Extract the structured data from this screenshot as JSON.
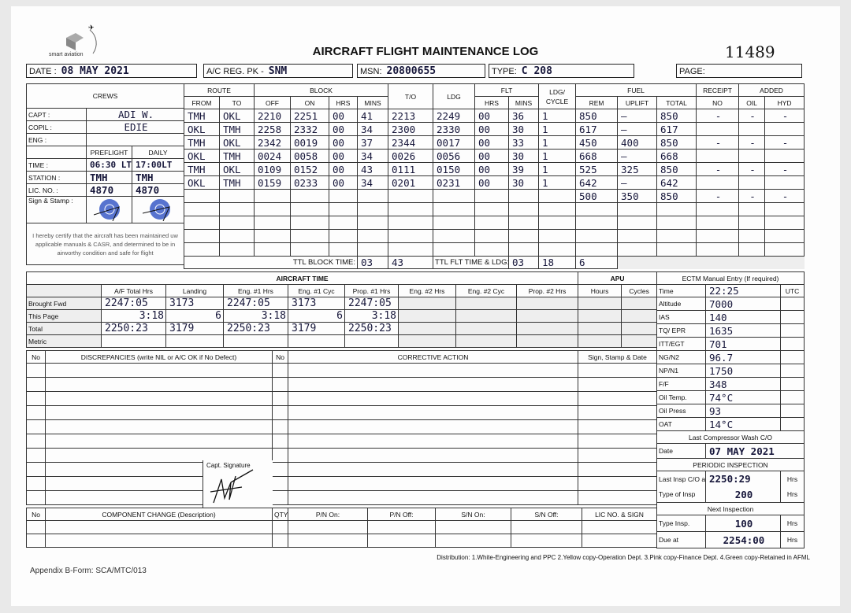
{
  "logo": {
    "text": "smart aviation"
  },
  "title": "AIRCRAFT FLIGHT MAINTENANCE LOG",
  "serial": "11489",
  "header": {
    "date_label": "DATE :",
    "date": "08 MAY 2021",
    "reg_label": "A/C REG. PK -",
    "reg": "SNM",
    "msn_label": "MSN:",
    "msn": "20800655",
    "type_label": "TYPE:",
    "type": "C 208",
    "page_label": "PAGE:",
    "page": ""
  },
  "crews": {
    "title": "CREWS",
    "capt_label": "CAPT :",
    "capt": "ADI W.",
    "copil_label": "COPIL :",
    "copil": "EDIE",
    "eng_label": "ENG :",
    "eng": "",
    "preflight_label": "PREFLIGHT",
    "daily_label": "DAILY",
    "time_label": "TIME :",
    "time_preflight": "06:30 LT",
    "time_daily": "17:00LT",
    "station_label": "STATION :",
    "station_preflight": "TMH",
    "station_daily": "TMH",
    "lic_label": "LIC. NO. :",
    "lic_preflight": "4870",
    "lic_daily": "4870",
    "sign_label": "Sign & Stamp :",
    "certify": "I hereby certify that the aircraft has been maintained uw applicable manuals & CASR, and determined to be in airworthy condition and safe for flight"
  },
  "flights": {
    "headers": {
      "route": "ROUTE",
      "from": "FROM",
      "to": "TO",
      "block": "BLOCK",
      "off": "OFF",
      "on": "ON",
      "hrs": "HRS",
      "mins": "MINS",
      "to_time": "T/O",
      "ldg": "LDG",
      "flt": "FLT",
      "flt_hrs": "HRS",
      "flt_mins": "MINS",
      "ldg_cycle": "LDG/ CYCLE",
      "fuel": "FUEL",
      "rem": "REM",
      "uplift": "UPLIFT",
      "total": "TOTAL",
      "receipt": "RECEIPT",
      "receipt_no": "NO",
      "added": "ADDED",
      "oil": "OIL",
      "hyd": "HYD"
    },
    "rows": [
      [
        "TMH",
        "OKL",
        "2210",
        "2251",
        "00",
        "41",
        "2213",
        "2249",
        "00",
        "36",
        "1",
        "850",
        "—",
        "850",
        "-",
        "-",
        "-"
      ],
      [
        "OKL",
        "TMH",
        "2258",
        "2332",
        "00",
        "34",
        "2300",
        "2330",
        "00",
        "30",
        "1",
        "617",
        "—",
        "617",
        "",
        "",
        ""
      ],
      [
        "TMH",
        "OKL",
        "2342",
        "0019",
        "00",
        "37",
        "2344",
        "0017",
        "00",
        "33",
        "1",
        "450",
        "400",
        "850",
        "-",
        "-",
        "-"
      ],
      [
        "OKL",
        "TMH",
        "0024",
        "0058",
        "00",
        "34",
        "0026",
        "0056",
        "00",
        "30",
        "1",
        "668",
        "—",
        "668",
        "",
        "",
        ""
      ],
      [
        "TMH",
        "OKL",
        "0109",
        "0152",
        "00",
        "43",
        "0111",
        "0150",
        "00",
        "39",
        "1",
        "525",
        "325",
        "850",
        "-",
        "-",
        "-"
      ],
      [
        "OKL",
        "TMH",
        "0159",
        "0233",
        "00",
        "34",
        "0201",
        "0231",
        "00",
        "30",
        "1",
        "642",
        "—",
        "642",
        "",
        "",
        ""
      ],
      [
        "",
        "",
        "",
        "",
        "",
        "",
        "",
        "",
        "",
        "",
        "",
        "500",
        "350",
        "850",
        "-",
        "-",
        "-"
      ],
      [
        "",
        "",
        "",
        "",
        "",
        "",
        "",
        "",
        "",
        "",
        "",
        "",
        "",
        "",
        "",
        "",
        ""
      ],
      [
        "",
        "",
        "",
        "",
        "",
        "",
        "",
        "",
        "",
        "",
        "",
        "",
        "",
        "",
        "",
        "",
        ""
      ],
      [
        "",
        "",
        "",
        "",
        "",
        "",
        "",
        "",
        "",
        "",
        "",
        "",
        "",
        "",
        "",
        "",
        ""
      ],
      [
        "",
        "",
        "",
        "",
        "",
        "",
        "",
        "",
        "",
        "",
        "",
        "",
        "",
        "",
        "",
        "",
        ""
      ]
    ],
    "ttl_block_label": "TTL BLOCK TIME:",
    "ttl_block_hrs": "03",
    "ttl_block_mins": "43",
    "ttl_flt_label": "TTL FLT TIME & LDG:",
    "ttl_flt_hrs": "03",
    "ttl_flt_mins": "18",
    "ttl_ldg": "6"
  },
  "aircraft_time": {
    "title": "AIRCRAFT TIME",
    "columns": [
      "A/F Total Hrs",
      "Landing",
      "Eng. #1 Hrs",
      "Eng. #1 Cyc",
      "Prop. #1 Hrs",
      "Eng. #2 Hrs",
      "Eng. #2 Cyc",
      "Prop. #2 Hrs"
    ],
    "rows": [
      {
        "label": "Brought Fwd",
        "values": [
          "2247:05",
          "3173",
          "2247:05",
          "3173",
          "2247:05",
          "",
          "",
          ""
        ]
      },
      {
        "label": "This Page",
        "values": [
          "3:18",
          "6",
          "3:18",
          "6",
          "3:18",
          "",
          "",
          ""
        ]
      },
      {
        "label": "Total",
        "values": [
          "2250:23",
          "3179",
          "2250:23",
          "3179",
          "2250:23",
          "",
          "",
          ""
        ]
      },
      {
        "label": "Metric",
        "values": [
          "",
          "",
          "",
          "",
          "",
          "",
          "",
          ""
        ]
      }
    ],
    "apu_title": "APU",
    "apu_hours": "Hours",
    "apu_cycles": "Cycles"
  },
  "ectm": {
    "title": "ECTM Manual Entry (If required)",
    "utc": "UTC",
    "rows": [
      {
        "label": "Time",
        "value": "22:25"
      },
      {
        "label": "Altitude",
        "value": "7000"
      },
      {
        "label": "IAS",
        "value": "140"
      },
      {
        "label": "TQ/ EPR",
        "value": "1635"
      },
      {
        "label": "ITT/EGT",
        "value": "701"
      },
      {
        "label": "NG/N2",
        "value": "96.7"
      },
      {
        "label": "NP/N1",
        "value": "1750"
      },
      {
        "label": "F/F",
        "value": "348"
      },
      {
        "label": "Oil Temp.",
        "value": "74°C"
      },
      {
        "label": "Oil Press",
        "value": "93"
      },
      {
        "label": "OAT",
        "value": "14°C"
      }
    ],
    "wash_title": "Last Compressor Wash C/O",
    "wash_date_label": "Date",
    "wash_date": "07 MAY 2021",
    "periodic_title": "PERIODIC INSPECTION",
    "last_insp_label": "Last Insp C/O at",
    "last_insp": "2250:29",
    "hrs": "Hrs",
    "type_insp_label": "Type of Insp",
    "type_insp": "200",
    "next_title": "Next Inspection",
    "next_type_label": "Type Insp.",
    "next_type": "100",
    "due_label": "Due at",
    "due": "2254:00"
  },
  "discrepancies": {
    "no": "No",
    "title": "DISCREPANCIES (write NIL or A/C OK if No Defect)",
    "no2": "No",
    "corrective": "CORRECTIVE ACTION",
    "sign": "Sign, Stamp & Date",
    "capt_signature": "Capt. Signature"
  },
  "components": {
    "no": "No",
    "title": "COMPONENT CHANGE (Description)",
    "qty": "QTY",
    "pn_on": "P/N On:",
    "pn_off": "P/N Off:",
    "sn_on": "S/N On:",
    "sn_off": "S/N Off:",
    "lic": "LIC NO. & SIGN"
  },
  "footer": {
    "distribution": "Distribution: 1.White-Engineering and PPC  2.Yellow copy-Operation Dept.  3.Pink copy-Finance Dept.  4.Green copy-Retained in AFML",
    "form": "Appendix B-Form: SCA/MTC/013"
  }
}
